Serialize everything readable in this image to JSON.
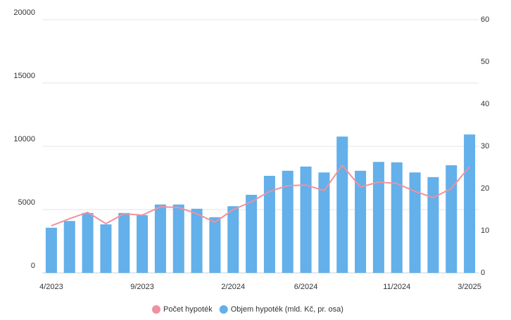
{
  "chart_data": {
    "type": "bar-line",
    "categories": [
      "4/2023",
      null,
      null,
      null,
      null,
      "9/2023",
      null,
      null,
      null,
      null,
      "2/2024",
      null,
      null,
      null,
      "6/2024",
      null,
      null,
      null,
      null,
      "11/2024",
      null,
      null,
      null,
      "3/2025"
    ],
    "series": [
      {
        "name": "Počet hypoték",
        "type": "line",
        "color": "#f0919e",
        "axis": "y",
        "values": [
          3720,
          4280,
          4780,
          3890,
          4670,
          4560,
          5220,
          5170,
          4670,
          4000,
          5000,
          5610,
          6440,
          6890,
          6940,
          6500,
          8500,
          6780,
          7170,
          7060,
          6440,
          5940,
          6670,
          8390
        ]
      },
      {
        "name": "Objem hypoték (mld. Kč, pr. osa)",
        "type": "bar",
        "color": "#63b0ea",
        "axis": "y2",
        "values": [
          10.7,
          12.3,
          14.2,
          11.5,
          14.2,
          13.7,
          16.2,
          16.2,
          15.2,
          13.2,
          15.8,
          18.5,
          23,
          24.2,
          25.2,
          23.8,
          32.3,
          24.2,
          26.3,
          26.2,
          23.8,
          22.7,
          25.5,
          32.8
        ]
      }
    ],
    "ylim": [
      0,
      20000
    ],
    "yticks": [
      0,
      5000,
      10000,
      15000,
      20000
    ],
    "y2lim": [
      0,
      60
    ],
    "y2ticks": [
      0,
      10,
      20,
      30,
      40,
      50,
      60
    ],
    "grid": true,
    "legend": "bottom"
  }
}
